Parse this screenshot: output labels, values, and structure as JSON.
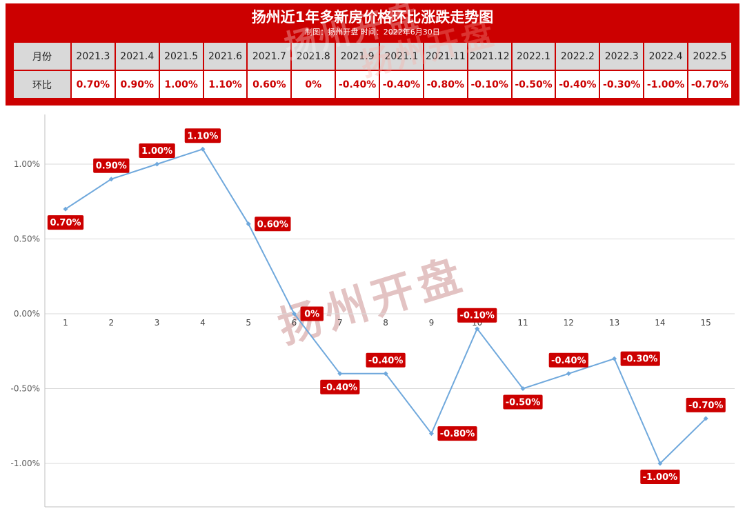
{
  "header": {
    "title": "扬州近1年多新房价格环比涨跌走势图",
    "subtitle": "制图：扬州开盘 时间：2022年6月30日"
  },
  "watermark": "扬州开盘",
  "colors": {
    "accent_red": "#cc0000",
    "line_blue": "#6fa8dc",
    "table_header_gray": "#d9d9d9"
  },
  "table": {
    "row1_header": "月份",
    "row2_header": "环比",
    "months": [
      "2021.3",
      "2021.4",
      "2021.5",
      "2021.6",
      "2021.7",
      "2021.8",
      "2021.9",
      "2021.1",
      "2021.11",
      "2021.12",
      "2022.1",
      "2022.2",
      "2022.3",
      "2022.4",
      "2022.5"
    ],
    "values": [
      "0.70%",
      "0.90%",
      "1.00%",
      "1.10%",
      "0.60%",
      "0%",
      "-0.40%",
      "-0.40%",
      "-0.80%",
      "-0.10%",
      "-0.50%",
      "-0.40%",
      "-0.30%",
      "-1.00%",
      "-0.70%"
    ]
  },
  "chart_data": {
    "type": "line",
    "title": "扬州近1年多新房价格环比涨跌走势图",
    "x": [
      1,
      2,
      3,
      4,
      5,
      6,
      7,
      8,
      9,
      10,
      11,
      12,
      13,
      14,
      15
    ],
    "values": [
      0.7,
      0.9,
      1.0,
      1.1,
      0.6,
      0,
      -0.4,
      -0.4,
      -0.8,
      -0.1,
      -0.5,
      -0.4,
      -0.3,
      -1.0,
      -0.7
    ],
    "labels": [
      "0.70%",
      "0.90%",
      "1.00%",
      "1.10%",
      "0.60%",
      "0%",
      "-0.40%",
      "-0.40%",
      "-0.80%",
      "-0.10%",
      "-0.50%",
      "-0.40%",
      "-0.30%",
      "-1.00%",
      "-0.70%"
    ],
    "y_ticks": [
      "1.00%",
      "0.50%",
      "0.00%",
      "-0.50%",
      "-1.00%"
    ],
    "y_tick_values": [
      1.0,
      0.5,
      0.0,
      -0.5,
      -1.0
    ],
    "ylim": [
      -1.3,
      1.35
    ],
    "xlabel": "",
    "ylabel": "",
    "grid": true,
    "legend": "none",
    "line_color": "#6fa8dc",
    "marker": "diamond",
    "label_bg": "#cc0000",
    "label_text_color": "#ffffff",
    "grid_color": "#d9d9d9",
    "axis_color": "#bfbfbf",
    "tick_text_color": "#595959",
    "label_placement": [
      "below",
      "above",
      "above",
      "above",
      "right",
      "right",
      "below",
      "above",
      "right",
      "above",
      "below",
      "above",
      "right",
      "below",
      "above"
    ]
  }
}
